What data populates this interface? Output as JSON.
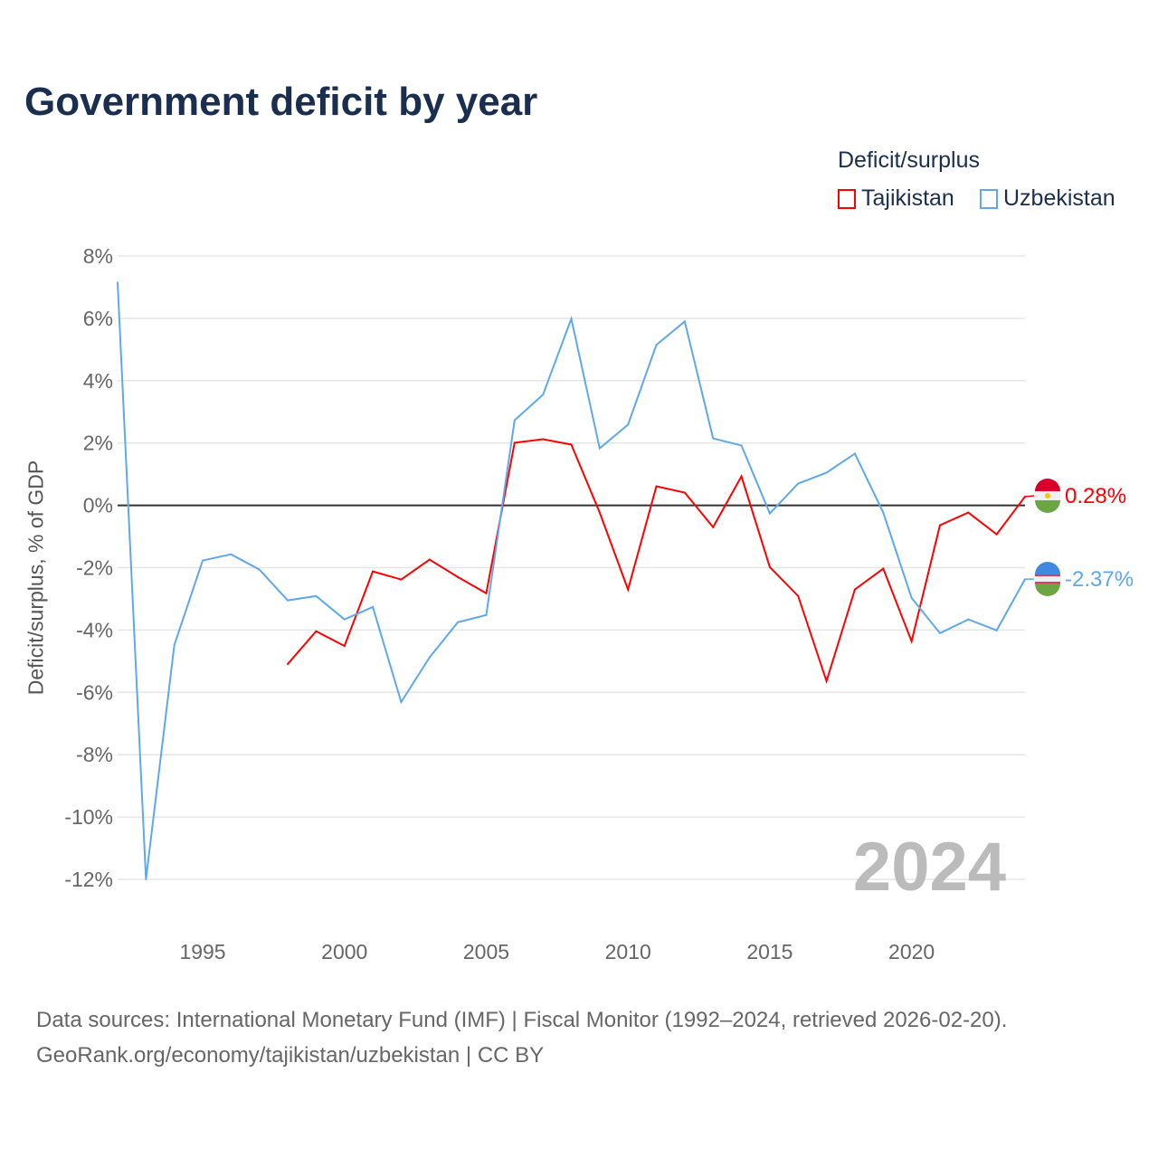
{
  "chart_data": {
    "type": "line",
    "title": "Government deficit by year",
    "ylabel": "Deficit/surplus, % of GDP",
    "xlabel": "",
    "ylim": [
      -12,
      8
    ],
    "xlim": [
      1992,
      2024
    ],
    "grid": true,
    "legend_title": "Deficit/surplus",
    "legend_position": "top-right",
    "y_ticks": [
      "8%",
      "6%",
      "4%",
      "2%",
      "0%",
      "-2%",
      "-4%",
      "-6%",
      "-8%",
      "-10%",
      "-12%"
    ],
    "y_tick_values": [
      8,
      6,
      4,
      2,
      0,
      -2,
      -4,
      -6,
      -8,
      -10,
      -12
    ],
    "x_ticks": [
      1995,
      2000,
      2005,
      2010,
      2015,
      2020
    ],
    "year_watermark": "2024",
    "series": [
      {
        "name": "Tajikistan",
        "color": "#ff0000",
        "end_label": "0.28%",
        "x": [
          1998,
          1999,
          2000,
          2001,
          2002,
          2003,
          2004,
          2005,
          2006,
          2007,
          2008,
          2009,
          2010,
          2011,
          2012,
          2013,
          2014,
          2015,
          2016,
          2017,
          2018,
          2019,
          2020,
          2021,
          2022,
          2023,
          2024
        ],
        "values": [
          -5.09,
          -4.04,
          -4.51,
          -2.12,
          -2.38,
          -1.74,
          -2.3,
          -2.82,
          2.01,
          2.12,
          1.95,
          -0.23,
          -2.7,
          0.61,
          0.41,
          -0.7,
          0.93,
          -1.98,
          -2.91,
          -5.64,
          -2.7,
          -2.03,
          -4.36,
          -0.64,
          -0.23,
          -0.93,
          0.28
        ]
      },
      {
        "name": "Uzbekistan",
        "color": "#5ea8ec",
        "end_label": "-2.37%",
        "x": [
          1992,
          1993,
          1994,
          1995,
          1996,
          1997,
          1998,
          1999,
          2000,
          2001,
          2002,
          2003,
          2004,
          2005,
          2006,
          2007,
          2008,
          2009,
          2010,
          2011,
          2012,
          2013,
          2014,
          2015,
          2016,
          2017,
          2018,
          2019,
          2020,
          2021,
          2022,
          2023,
          2024
        ],
        "values": [
          7.15,
          -12.0,
          -4.48,
          -1.77,
          -1.57,
          -2.06,
          -3.05,
          -2.91,
          -3.66,
          -3.26,
          -6.31,
          -4.88,
          -3.75,
          -3.52,
          2.73,
          3.55,
          5.99,
          1.83,
          2.59,
          5.15,
          5.9,
          2.15,
          1.92,
          -0.26,
          0.7,
          1.05,
          1.66,
          -0.23,
          -2.97,
          -4.1,
          -3.66,
          -4.01,
          -2.37
        ]
      }
    ]
  },
  "source_line1": "Data sources: International Monetary Fund (IMF) | Fiscal Monitor (1992–2024, retrieved 2026-02-20).",
  "source_line2": "GeoRank.org/economy/tajikistan/uzbekistan | CC BY"
}
